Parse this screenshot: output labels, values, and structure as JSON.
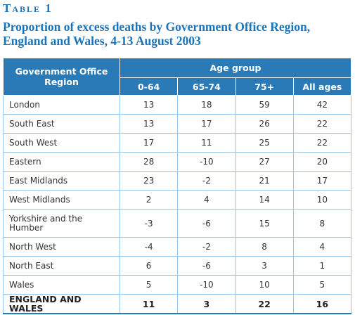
{
  "header": {
    "label": "Table 1",
    "title": "Proportion of excess deaths by Government Office Region, England and Wales, 4-13 August 2003"
  },
  "table": {
    "region_header": "Government Office Region",
    "group_header": "Age group",
    "columns": [
      "0-64",
      "65-74",
      "75+",
      "All ages"
    ],
    "rows": [
      [
        "London",
        13,
        18,
        59,
        42
      ],
      [
        "South East",
        13,
        17,
        26,
        22
      ],
      [
        "South West",
        17,
        11,
        25,
        22
      ],
      [
        "Eastern",
        28,
        -10,
        27,
        20
      ],
      [
        "East Midlands",
        23,
        -2,
        21,
        17
      ],
      [
        "West Midlands",
        2,
        4,
        14,
        10
      ],
      [
        "Yorkshire and the Humber",
        -3,
        -6,
        15,
        8
      ],
      [
        "North West",
        -4,
        -2,
        8,
        4
      ],
      [
        "North East",
        6,
        -6,
        3,
        1
      ],
      [
        "Wales",
        5,
        -10,
        10,
        5
      ]
    ],
    "total": [
      "ENGLAND AND WALES",
      11,
      3,
      22,
      16
    ]
  }
}
